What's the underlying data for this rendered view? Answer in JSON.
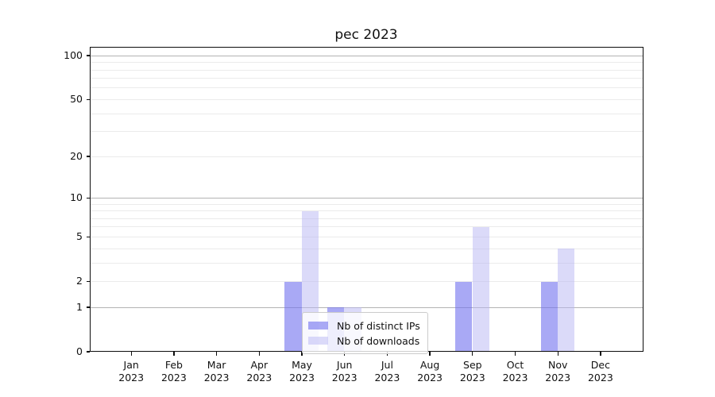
{
  "chart_data": {
    "type": "bar",
    "title": "pec 2023",
    "categories": [
      "Jan",
      "Feb",
      "Mar",
      "Apr",
      "May",
      "Jun",
      "Jul",
      "Aug",
      "Sep",
      "Oct",
      "Nov",
      "Dec"
    ],
    "tick_year": "2023",
    "series": [
      {
        "name": "Nb of distinct IPs",
        "color": "#7474ef",
        "alpha": 0.62,
        "values": [
          0,
          0,
          0,
          0,
          2,
          1,
          0,
          0,
          2,
          0,
          2,
          0
        ]
      },
      {
        "name": "Nb of downloads",
        "color": "#b7b5f3",
        "alpha": 0.5,
        "values": [
          0,
          0,
          0,
          0,
          8,
          1,
          0,
          0,
          6,
          0,
          4,
          0
        ]
      }
    ],
    "xlabel": "",
    "ylabel": "",
    "yscale": "log1p",
    "ylim": [
      0,
      117
    ],
    "yticks": [
      0,
      1,
      2,
      5,
      10,
      20,
      50,
      100
    ],
    "major_gridline_values": [
      1,
      2,
      5,
      10,
      20,
      50,
      100
    ],
    "minor_gridline_values": [
      3,
      4,
      6,
      7,
      8,
      9,
      30,
      40,
      60,
      70,
      80,
      90
    ],
    "emphasized_gridline_values": [
      1,
      10,
      100
    ],
    "grid": true,
    "legend_position": "lower center-left",
    "colors": {
      "grid_minor": "#ebebeb",
      "grid_emphasized": "#b3b3b3",
      "spine": "#0d0d0d",
      "text": "#111111",
      "legend_border": "#cbcbcb"
    }
  }
}
